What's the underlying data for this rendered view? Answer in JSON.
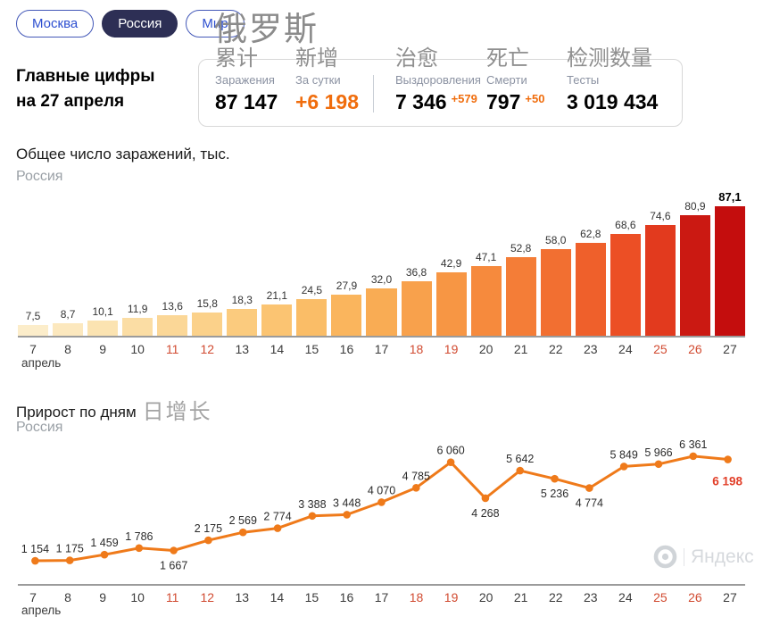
{
  "header": {
    "tabs": [
      {
        "label": "Москва",
        "active": false
      },
      {
        "label": "Россия",
        "active": true
      },
      {
        "label": "Мир",
        "active": false
      }
    ],
    "title_cn": "俄罗斯"
  },
  "stats": {
    "heading_line1": "Главные цифры",
    "heading_line2": "на 27 апреля",
    "items": [
      {
        "cn": "累计",
        "ru": "Заражения",
        "value": "87 147",
        "delta": ""
      },
      {
        "cn": "新增",
        "ru": "За сутки",
        "value": "+6 198",
        "delta": ""
      },
      {
        "cn": "治愈",
        "ru": "Выздоровления",
        "value": "7 346",
        "delta": "+579"
      },
      {
        "cn": "死亡",
        "ru": "Смерти",
        "value": "797",
        "delta": "+50"
      },
      {
        "cn": "检测数量",
        "ru": "Тесты",
        "value": "3 019 434",
        "delta": ""
      }
    ]
  },
  "chart_data": [
    {
      "type": "bar",
      "title": "Общее число заражений, тыс.",
      "subtitle": "Россия",
      "xlabel": "апрель",
      "categories": [
        7,
        8,
        9,
        10,
        11,
        12,
        13,
        14,
        15,
        16,
        17,
        18,
        19,
        20,
        21,
        22,
        23,
        24,
        25,
        26,
        27
      ],
      "weekend_days": [
        11,
        12,
        18,
        19,
        25,
        26
      ],
      "values": [
        7.5,
        8.7,
        10.1,
        11.9,
        13.6,
        15.8,
        18.3,
        21.1,
        24.5,
        27.9,
        32.0,
        36.8,
        42.9,
        47.1,
        52.8,
        58.0,
        62.8,
        68.6,
        74.6,
        80.9,
        87.1
      ],
      "labels": [
        "7,5",
        "8,7",
        "10,1",
        "11,9",
        "13,6",
        "15,8",
        "18,3",
        "21,1",
        "24,5",
        "27,9",
        "32,0",
        "36,8",
        "42,9",
        "47,1",
        "52,8",
        "58,0",
        "62,8",
        "68,6",
        "74,6",
        "80,9",
        "87,1"
      ],
      "bar_colors": [
        "#FCEDCA",
        "#FCE8BE",
        "#FBE3B1",
        "#FBDDA4",
        "#FBD797",
        "#FBD18A",
        "#FBCB7E",
        "#FBC472",
        "#FABD67",
        "#FAB55D",
        "#F9AC54",
        "#F8A14C",
        "#F79644",
        "#F68A3D",
        "#F47D37",
        "#F26F31",
        "#EF602B",
        "#EC4F25",
        "#E23A1E",
        "#CB1912",
        "#C40D0D"
      ],
      "ylim": [
        0,
        87.1
      ],
      "grid": false,
      "legend": false
    },
    {
      "type": "line",
      "title": "Прирост по дням",
      "title_cn": "日增长",
      "subtitle": "Россия",
      "xlabel": "апрель",
      "categories": [
        7,
        8,
        9,
        10,
        11,
        12,
        13,
        14,
        15,
        16,
        17,
        18,
        19,
        20,
        21,
        22,
        23,
        24,
        25,
        26,
        27
      ],
      "weekend_days": [
        11,
        12,
        18,
        19,
        25,
        26
      ],
      "values": [
        1154,
        1175,
        1459,
        1786,
        1667,
        2175,
        2569,
        2774,
        3388,
        3448,
        4070,
        4785,
        6060,
        4268,
        5642,
        5236,
        4774,
        5849,
        5966,
        6361,
        6198
      ],
      "labels": [
        "1 154",
        "1 175",
        "1 459",
        "1 786",
        "1 667",
        "2 175",
        "2 569",
        "2 774",
        "3 388",
        "3 448",
        "4 070",
        "4 785",
        "6 060",
        "4 268",
        "5 642",
        "5 236",
        "4 774",
        "5 849",
        "5 966",
        "6 361",
        "6 198"
      ],
      "label_placement": [
        "above",
        "above",
        "above",
        "above",
        "below",
        "above",
        "above",
        "above",
        "above",
        "above",
        "above",
        "above",
        "above",
        "below",
        "above",
        "below",
        "below",
        "above",
        "above",
        "above",
        "end"
      ],
      "line_color": "#EF7A1A",
      "label_color": "#2b2b2b",
      "last_label_color": "#E2402A",
      "ylim": [
        0,
        6500
      ],
      "grid": false,
      "legend": false
    }
  ],
  "watermark": {
    "text": "Яндекс"
  },
  "colors": {
    "accent_orange": "#F06D0D",
    "weekend_label": "#D14B31",
    "axis": "#9B9B9B",
    "tab_active_bg": "#2D2F55",
    "tab_border": "#4358B8"
  }
}
